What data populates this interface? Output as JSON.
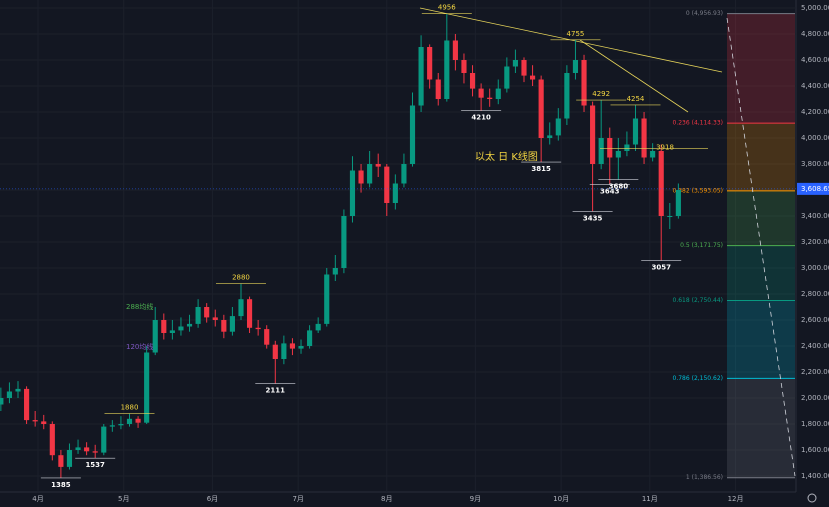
{
  "chart_data": {
    "type": "candlestick",
    "title": "以太 日 K线图",
    "candles": {
      "opens": [
        1950,
        2000,
        2050,
        2070,
        1830,
        1820,
        1800,
        1560,
        1470,
        1600,
        1620,
        1590,
        1580,
        1780,
        1790,
        1800,
        1840,
        1810,
        2350,
        2600,
        2500,
        2520,
        2550,
        2570,
        2700,
        2620,
        2600,
        2510,
        2630,
        2760,
        2540,
        2530,
        2410,
        2300,
        2420,
        2380,
        2400,
        2520,
        2570,
        2950,
        3000,
        3400,
        3750,
        3650,
        3800,
        3780,
        3500,
        3650,
        3800,
        4250,
        4700,
        4450,
        4300,
        4750,
        4600,
        4500,
        4380,
        4310,
        4300,
        4380,
        4550,
        4600,
        4480,
        4450,
        4000,
        4020,
        4150,
        4500,
        4600,
        4250,
        3800,
        4000,
        3850,
        3900,
        3950,
        4150,
        3850,
        3900,
        3400,
        3400
      ],
      "highs": [
        2080,
        2120,
        2130,
        2090,
        1900,
        1870,
        1820,
        1600,
        1650,
        1680,
        1660,
        1640,
        1800,
        1830,
        1860,
        1880,
        1860,
        2400,
        2700,
        2650,
        2600,
        2620,
        2640,
        2760,
        2730,
        2680,
        2640,
        2700,
        2880,
        2780,
        2600,
        2560,
        2440,
        2480,
        2460,
        2450,
        2560,
        2620,
        3000,
        3100,
        3450,
        3860,
        3800,
        3900,
        3880,
        3800,
        3720,
        3880,
        4350,
        4790,
        4720,
        4500,
        4956,
        4800,
        4650,
        4560,
        4420,
        4380,
        4450,
        4620,
        4680,
        4620,
        4560,
        4480,
        4120,
        4230,
        4560,
        4755,
        4640,
        4280,
        4292,
        4080,
        4000,
        4050,
        4254,
        4200,
        3960,
        3950,
        3500,
        3650
      ],
      "lows": [
        1900,
        1960,
        2000,
        1800,
        1780,
        1760,
        1520,
        1385,
        1450,
        1570,
        1560,
        1537,
        1560,
        1740,
        1760,
        1780,
        1770,
        1800,
        2330,
        2450,
        2450,
        2480,
        2510,
        2540,
        2580,
        2550,
        2460,
        2480,
        2600,
        2500,
        2480,
        2380,
        2111,
        2260,
        2330,
        2340,
        2380,
        2500,
        2550,
        2900,
        2960,
        3350,
        3580,
        3620,
        3700,
        3400,
        3450,
        3620,
        3780,
        4200,
        4380,
        4250,
        4280,
        4520,
        4420,
        4320,
        4210,
        4240,
        4260,
        4350,
        4500,
        4430,
        4400,
        3815,
        3950,
        3980,
        4100,
        4450,
        4200,
        3435,
        3760,
        3643,
        3680,
        3860,
        3900,
        3800,
        3820,
        3057,
        3300,
        3380
      ],
      "closes": [
        2000,
        2050,
        2070,
        1830,
        1820,
        1800,
        1560,
        1470,
        1600,
        1620,
        1590,
        1580,
        1780,
        1790,
        1800,
        1840,
        1810,
        2350,
        2600,
        2500,
        2520,
        2550,
        2570,
        2700,
        2620,
        2600,
        2510,
        2630,
        2760,
        2540,
        2530,
        2410,
        2300,
        2420,
        2380,
        2400,
        2520,
        2570,
        2950,
        3000,
        3400,
        3750,
        3650,
        3800,
        3780,
        3500,
        3650,
        3800,
        4250,
        4700,
        4450,
        4300,
        4750,
        4600,
        4500,
        4380,
        4310,
        4300,
        4380,
        4550,
        4600,
        4480,
        4450,
        4000,
        4020,
        4150,
        4500,
        4600,
        4250,
        3800,
        4000,
        3850,
        3900,
        3950,
        4150,
        3850,
        3900,
        3400,
        3400,
        3600
      ]
    },
    "up_color": "#089981",
    "down_color": "#f23645",
    "marked_highs": [
      4956,
      4755,
      4292,
      4254,
      2880,
      1880
    ],
    "marked_lows": [
      4210,
      3815,
      3643,
      3435,
      3680,
      3057,
      2111,
      1537,
      1385
    ],
    "marked_levels": [
      3918
    ],
    "last_price": {
      "value": 3608.65,
      "label": "3,608.65"
    },
    "notes": [
      {
        "text": "288均线",
        "color": "#4caf50"
      },
      {
        "text": "120均线",
        "color": "#7e57c2"
      }
    ],
    "fib": [
      {
        "label": "0 (4,956.93)",
        "value": 4956.93,
        "color": "#787b86"
      },
      {
        "label": "0.236 (4,114.33)",
        "value": 4114.33,
        "color": "#f23645"
      },
      {
        "label": "0.382 (3,593.05)",
        "value": 3593.05,
        "color": "#ff9800"
      },
      {
        "label": "0.5 (3,171.75)",
        "value": 3171.75,
        "color": "#4caf50"
      },
      {
        "label": "0.618 (2,750.44)",
        "value": 2750.44,
        "color": "#089981"
      },
      {
        "label": "0.786 (2,150.62)",
        "value": 2150.62,
        "color": "#00bcd4"
      },
      {
        "label": "1 (1,386.56)",
        "value": 1386.56,
        "color": "#787b86"
      }
    ],
    "xlim": [
      -0.1,
      92.6
    ],
    "xticks": [
      {
        "value": 4.33,
        "label": "4月"
      },
      {
        "value": 14.33,
        "label": "5月"
      },
      {
        "value": 24.67,
        "label": "6月"
      },
      {
        "value": 34.67,
        "label": "7月"
      },
      {
        "value": 45,
        "label": "8月"
      },
      {
        "value": 55.33,
        "label": "9月"
      },
      {
        "value": 65.33,
        "label": "10月"
      },
      {
        "value": 75.67,
        "label": "11月"
      },
      {
        "value": 85.67,
        "label": "12月"
      }
    ],
    "ylim": [
      1400,
      5000
    ],
    "yticks": [
      {
        "value": 1400,
        "label": "1,400.00"
      },
      {
        "value": 1600,
        "label": "1,600.00"
      },
      {
        "value": 1800,
        "label": "1,800.00"
      },
      {
        "value": 2000,
        "label": "2,000.00"
      },
      {
        "value": 2200,
        "label": "2,200.00"
      },
      {
        "value": 2400,
        "label": "2,400.00"
      },
      {
        "value": 2600,
        "label": "2,600.00"
      },
      {
        "value": 2800,
        "label": "2,800.00"
      },
      {
        "value": 3000,
        "label": "3,000.00"
      },
      {
        "value": 3200,
        "label": "3,200.00"
      },
      {
        "value": 3400,
        "label": "3,400.00"
      },
      {
        "value": 3600,
        "label": "3,600.00"
      },
      {
        "value": 3800,
        "label": "3,800.00"
      },
      {
        "value": 4000,
        "label": "4,000.00"
      },
      {
        "value": 4200,
        "label": "4,200.00"
      },
      {
        "value": 4400,
        "label": "4,400.00"
      },
      {
        "value": 4600,
        "label": "4,600.00"
      },
      {
        "value": 4800,
        "label": "4,800.00"
      },
      {
        "value": 5000,
        "label": "5,000.00"
      }
    ],
    "grid": true
  }
}
